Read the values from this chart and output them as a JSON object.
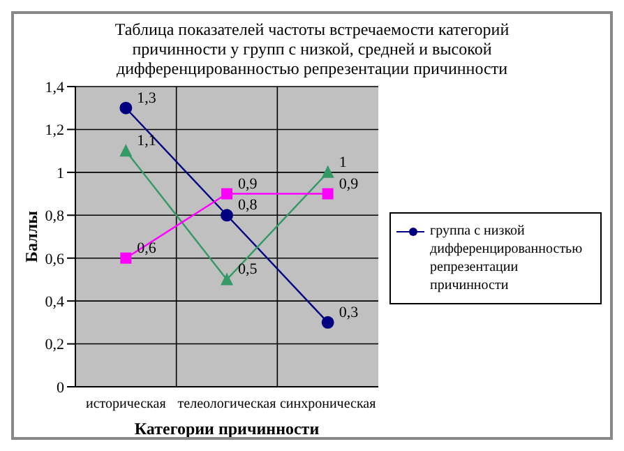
{
  "chart_data": {
    "type": "line",
    "title": "Таблица показателей частоты встречаемости категорий причинности у групп с низкой, средней и высокой дифференцированностью репрезентации причинности",
    "xlabel": "Категории причинности",
    "ylabel": "Баллы",
    "categories": [
      "историческая",
      "телеологическая",
      "синхроническая"
    ],
    "series": [
      {
        "name": "группа с низкой дифференцированностью репрезентации причинности",
        "color": "#000080",
        "marker": "circle",
        "values": [
          1.3,
          0.8,
          0.3
        ],
        "value_labels": [
          "1,3",
          "0,8",
          "0,3"
        ]
      },
      {
        "color": "#339966",
        "marker": "triangle",
        "values": [
          1.1,
          0.5,
          1
        ],
        "value_labels": [
          "1,1",
          "0,5",
          "1"
        ]
      },
      {
        "color": "#ff00ff",
        "marker": "square",
        "values": [
          0.6,
          0.9,
          0.9
        ],
        "value_labels": [
          "0,6",
          "0,9",
          "0,9"
        ]
      }
    ],
    "ylim": [
      0,
      1.4
    ],
    "yticks": [
      0,
      {
        "value": 0.2,
        "label": "0,2"
      },
      {
        "value": 0.4,
        "label": "0,4"
      },
      {
        "value": 0.6,
        "label": "0,6"
      },
      {
        "value": 0.8,
        "label": "0,8"
      },
      1,
      {
        "value": 1.2,
        "label": "1,2"
      },
      {
        "value": 1.4,
        "label": "1,4"
      }
    ],
    "grid": true,
    "legend": "right",
    "line_style": "solid"
  }
}
